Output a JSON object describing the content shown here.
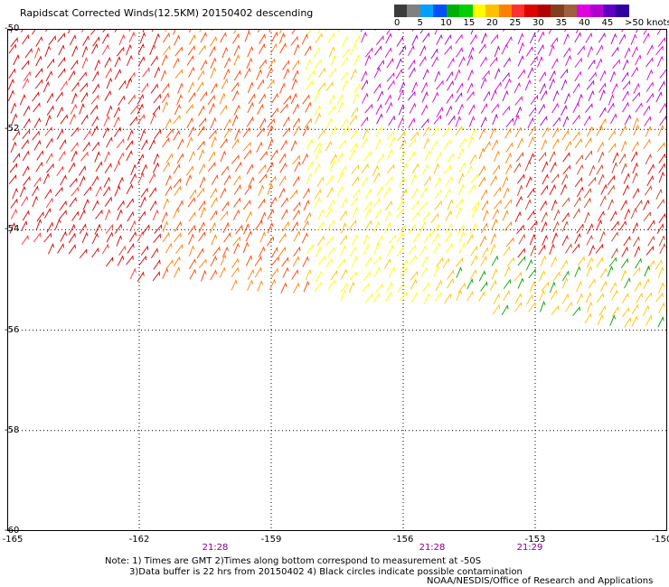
{
  "title": "Rapidscat Corrected Winds(12.5KM) 20150402 descending",
  "legend": {
    "labels": [
      "0",
      "5",
      "10",
      "15",
      "20",
      "25",
      "30",
      "35",
      "40",
      "45",
      ">50 knots"
    ],
    "colors": [
      "#3c3c3c",
      "#808080",
      "#00a0ff",
      "#0050ff",
      "#00b000",
      "#00d000",
      "#ffff00",
      "#ffc000",
      "#ff8000",
      "#ff3030",
      "#e00000",
      "#b00000",
      "#804020",
      "#a06040",
      "#e000e0",
      "#b000d0",
      "#6000c0",
      "#3000a0"
    ]
  },
  "axes": {
    "lat_labels": [
      "-50",
      "-52",
      "-54",
      "-56",
      "-58",
      "-60"
    ],
    "lon_labels": [
      "-165",
      "-162",
      "-159",
      "-156",
      "-153",
      "-150"
    ],
    "lat_range": [
      -60,
      -50
    ],
    "lon_range": [
      -165,
      -150
    ],
    "grid": "dotted"
  },
  "times": [
    "21:28",
    "21:28",
    "21:29"
  ],
  "note": {
    "line1": "Note: 1) Times are GMT 2)Times along bottom correspond to measurement at -50S",
    "line2": "3)Data buffer is 22 hrs from 20150402 4) Black circles indicate possible contamination"
  },
  "credit": "NOAA/NESDIS/Office of Research and Applications"
}
